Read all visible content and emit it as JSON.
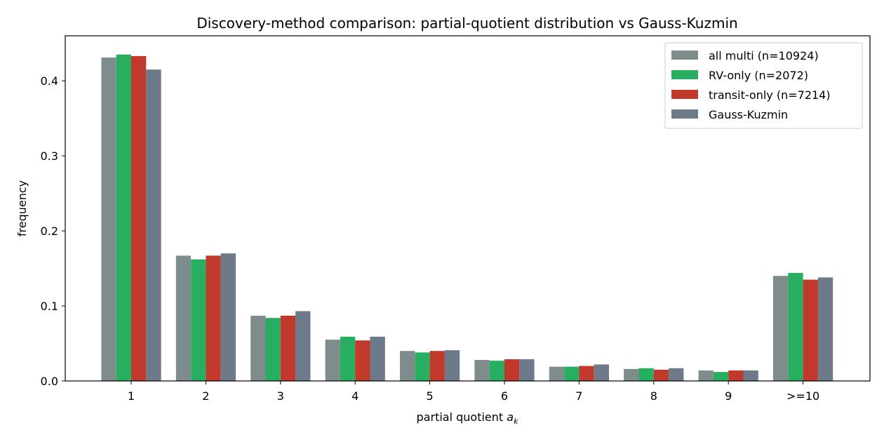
{
  "chart_data": {
    "type": "bar",
    "title": "Discovery-method comparison: partial-quotient distribution vs Gauss-Kuzmin",
    "xlabel": "partial quotient ",
    "xlabel_math": "a",
    "xlabel_sub": "k",
    "ylabel": "frequency",
    "categories": [
      "1",
      "2",
      "3",
      "4",
      "5",
      "6",
      "7",
      "8",
      "9",
      ">=10"
    ],
    "ylim": [
      0,
      0.46
    ],
    "yticks": [
      0.0,
      0.1,
      0.2,
      0.3,
      0.4
    ],
    "ytick_labels": [
      "0.0",
      "0.1",
      "0.2",
      "0.3",
      "0.4"
    ],
    "grid": false,
    "legend_position": "top-right",
    "series": [
      {
        "name": "all multi (n=10924)",
        "color": "#7f8c8d",
        "values": [
          0.431,
          0.167,
          0.087,
          0.055,
          0.04,
          0.028,
          0.019,
          0.016,
          0.014,
          0.14
        ]
      },
      {
        "name": "RV-only (n=2072)",
        "color": "#27ae60",
        "values": [
          0.435,
          0.162,
          0.084,
          0.059,
          0.038,
          0.027,
          0.019,
          0.017,
          0.012,
          0.144
        ]
      },
      {
        "name": "transit-only (n=7214)",
        "color": "#c0392b",
        "values": [
          0.433,
          0.167,
          0.087,
          0.054,
          0.04,
          0.029,
          0.02,
          0.015,
          0.014,
          0.135
        ]
      },
      {
        "name": "Gauss-Kuzmin",
        "color": "#6c7a89",
        "values": [
          0.415,
          0.17,
          0.093,
          0.059,
          0.041,
          0.029,
          0.022,
          0.017,
          0.014,
          0.138
        ]
      }
    ]
  }
}
